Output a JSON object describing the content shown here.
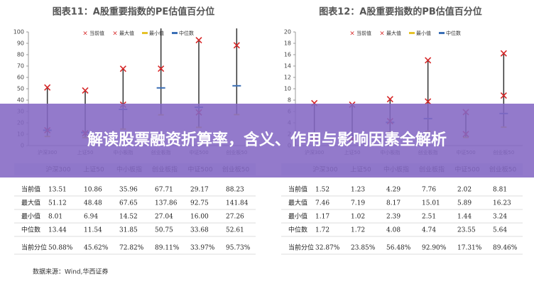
{
  "chart_data": [
    {
      "type": "range",
      "title": "图表11：A股重要指数的PE估值百分位",
      "categories": [
        "沪深300",
        "上证50",
        "中小板指",
        "创业板指",
        "中证500",
        "创业板50"
      ],
      "series": [
        {
          "name": "当前值",
          "color": "#d62728",
          "values": [
            13.51,
            10.86,
            35.96,
            67.71,
            29.17,
            88.23
          ]
        },
        {
          "name": "最大值",
          "color": "#d62728",
          "values": [
            51.12,
            48.48,
            67.65,
            137.86,
            92.75,
            141.84
          ]
        },
        {
          "name": "最小值",
          "color": "#e6c229",
          "values": [
            8.01,
            6.94,
            14.52,
            27.04,
            16.0,
            27.26
          ],
          "value_labels": [
            "8.01",
            "6.94",
            "14.52",
            "27.04",
            "16.00",
            "27.26"
          ]
        },
        {
          "name": "中位数",
          "color": "#3b6fb6",
          "values": [
            13.44,
            11.54,
            31.85,
            50.75,
            33.68,
            52.61
          ]
        }
      ],
      "percentile": {
        "name": "当前分位",
        "values": [
          50.88,
          45.62,
          72.82,
          89.11,
          33.97,
          95.73
        ],
        "value_labels": [
          "50.88%",
          "45.62%",
          "72.82%",
          "89.11%",
          "33.97%",
          "95.73%"
        ]
      },
      "ylim": [
        0,
        100
      ],
      "yticks": [
        0,
        10,
        20,
        30,
        40,
        50,
        60,
        70,
        80,
        90,
        100
      ],
      "source": "数据来源：Wind,华西证券"
    },
    {
      "type": "range",
      "title": "图表12：A股重要指数的PB估值百分位",
      "categories": [
        "沪深300",
        "上证50",
        "中小板指",
        "创业板指",
        "中证500",
        "创业板50"
      ],
      "series": [
        {
          "name": "当前值",
          "color": "#d62728",
          "values": [
            1.52,
            1.23,
            4.29,
            7.76,
            2.02,
            8.81
          ]
        },
        {
          "name": "最大值",
          "color": "#d62728",
          "values": [
            7.46,
            7.19,
            8.17,
            15.01,
            5.89,
            16.23
          ]
        },
        {
          "name": "最小值",
          "color": "#e6c229",
          "values": [
            1.17,
            1.02,
            2.39,
            2.51,
            1.44,
            3.24
          ]
        },
        {
          "name": "中位数",
          "color": "#3b6fb6",
          "values": [
            1.72,
            1.72,
            4.08,
            4.74,
            23.55,
            5.64
          ]
        }
      ],
      "percentile": {
        "name": "当前分位",
        "values": [
          32.87,
          23.85,
          56.48,
          92.9,
          17.31,
          89.46
        ],
        "value_labels": [
          "32.87%",
          "23.85%",
          "56.48%",
          "92.90%",
          "17.31%",
          "89.46%"
        ]
      },
      "ylim": [
        0,
        20
      ],
      "yticks": [
        0,
        2,
        4,
        6,
        8,
        10,
        12,
        14,
        16,
        18,
        20
      ]
    }
  ],
  "banner": "解读股票融资折算率，含义、作用与影响因素全解析"
}
